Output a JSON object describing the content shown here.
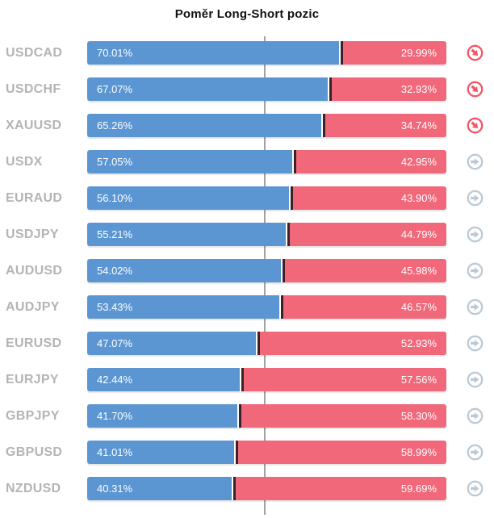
{
  "title": "Poměr Long-Short pozic",
  "colors": {
    "long_bar": "#5b96d2",
    "short_bar": "#f0687a",
    "bar_divider": "#3a2228",
    "symbol_label": "#b4b4b4",
    "center_line": "#a2a2a2",
    "alert_icon": "#f25768",
    "neutral_icon": "#bcc9d4"
  },
  "chart_data": {
    "type": "bar",
    "orientation": "horizontal",
    "stacked": true,
    "title": "Poměr Long-Short pozic",
    "categories": [
      "USDCAD",
      "USDCHF",
      "XAUUSD",
      "USDX",
      "EURAUD",
      "USDJPY",
      "AUDUSD",
      "AUDJPY",
      "EURUSD",
      "EURJPY",
      "GBPJPY",
      "GBPUSD",
      "NZDUSD"
    ],
    "series": [
      {
        "name": "Long",
        "color": "#5b96d2",
        "values": [
          70.01,
          67.07,
          65.26,
          57.05,
          56.1,
          55.21,
          54.02,
          53.43,
          47.07,
          42.44,
          41.7,
          41.01,
          40.31
        ]
      },
      {
        "name": "Short",
        "color": "#f0687a",
        "values": [
          29.99,
          32.93,
          34.74,
          42.95,
          43.9,
          44.79,
          45.98,
          46.57,
          52.93,
          57.56,
          58.3,
          58.99,
          59.69
        ]
      }
    ],
    "xlim": [
      0,
      100
    ],
    "center_line": 50,
    "legend": false,
    "value_labels_on_bars": true
  },
  "rows": [
    {
      "symbol": "USDCAD",
      "long": 70.01,
      "short": 29.99,
      "long_label": "70.01%",
      "short_label": "29.99%",
      "icon": "arrow-down-right-circle"
    },
    {
      "symbol": "USDCHF",
      "long": 67.07,
      "short": 32.93,
      "long_label": "67.07%",
      "short_label": "32.93%",
      "icon": "arrow-down-right-circle"
    },
    {
      "symbol": "XAUUSD",
      "long": 65.26,
      "short": 34.74,
      "long_label": "65.26%",
      "short_label": "34.74%",
      "icon": "arrow-down-right-circle"
    },
    {
      "symbol": "USDX",
      "long": 57.05,
      "short": 42.95,
      "long_label": "57.05%",
      "short_label": "42.95%",
      "icon": "arrow-right-circle"
    },
    {
      "symbol": "EURAUD",
      "long": 56.1,
      "short": 43.9,
      "long_label": "56.10%",
      "short_label": "43.90%",
      "icon": "arrow-right-circle"
    },
    {
      "symbol": "USDJPY",
      "long": 55.21,
      "short": 44.79,
      "long_label": "55.21%",
      "short_label": "44.79%",
      "icon": "arrow-right-circle"
    },
    {
      "symbol": "AUDUSD",
      "long": 54.02,
      "short": 45.98,
      "long_label": "54.02%",
      "short_label": "45.98%",
      "icon": "arrow-right-circle"
    },
    {
      "symbol": "AUDJPY",
      "long": 53.43,
      "short": 46.57,
      "long_label": "53.43%",
      "short_label": "46.57%",
      "icon": "arrow-right-circle"
    },
    {
      "symbol": "EURUSD",
      "long": 47.07,
      "short": 52.93,
      "long_label": "47.07%",
      "short_label": "52.93%",
      "icon": "arrow-right-circle"
    },
    {
      "symbol": "EURJPY",
      "long": 42.44,
      "short": 57.56,
      "long_label": "42.44%",
      "short_label": "57.56%",
      "icon": "arrow-right-circle"
    },
    {
      "symbol": "GBPJPY",
      "long": 41.7,
      "short": 58.3,
      "long_label": "41.70%",
      "short_label": "58.30%",
      "icon": "arrow-right-circle"
    },
    {
      "symbol": "GBPUSD",
      "long": 41.01,
      "short": 58.99,
      "long_label": "41.01%",
      "short_label": "58.99%",
      "icon": "arrow-right-circle"
    },
    {
      "symbol": "NZDUSD",
      "long": 40.31,
      "short": 59.69,
      "long_label": "40.31%",
      "short_label": "59.69%",
      "icon": "arrow-right-circle"
    }
  ]
}
